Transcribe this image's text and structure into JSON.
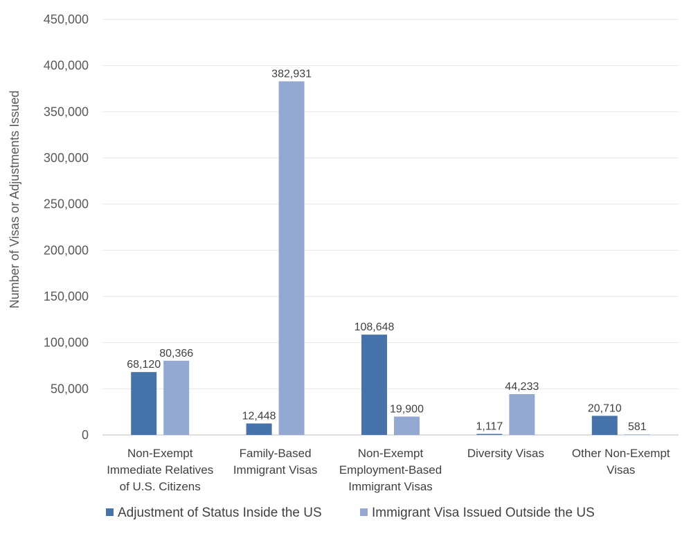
{
  "chart_data": {
    "type": "bar",
    "title": "",
    "xlabel": "",
    "ylabel": "Number of Visas or Adjustments Issued",
    "ylim": [
      0,
      450000
    ],
    "yticks": [
      0,
      50000,
      100000,
      150000,
      200000,
      250000,
      300000,
      350000,
      400000,
      450000
    ],
    "ytick_labels": [
      "0",
      "50,000",
      "100,000",
      "150,000",
      "200,000",
      "250,000",
      "300,000",
      "350,000",
      "400,000",
      "450,000"
    ],
    "grid": true,
    "legend_position": "bottom",
    "categories": [
      [
        "Non-Exempt",
        "Immediate Relatives",
        "of U.S. Citizens"
      ],
      [
        "Family-Based",
        "Immigrant Visas"
      ],
      [
        "Non-Exempt",
        "Employment-Based",
        "Immigrant Visas"
      ],
      [
        "Diversity Visas"
      ],
      [
        "Other Non-Exempt",
        "Visas"
      ]
    ],
    "series": [
      {
        "name": "Adjustment of Status Inside the US",
        "color": "#4674aa",
        "values": [
          68120,
          12448,
          108648,
          1117,
          20710
        ],
        "labels": [
          "68,120",
          "12,448",
          "108,648",
          "1,117",
          "20,710"
        ]
      },
      {
        "name": "Immigrant Visa Issued Outside the US",
        "color": "#93a9d2",
        "values": [
          80366,
          382931,
          19900,
          44233,
          581
        ],
        "labels": [
          "80,366",
          "382,931",
          "19,900",
          "44,233",
          "581"
        ]
      }
    ]
  }
}
